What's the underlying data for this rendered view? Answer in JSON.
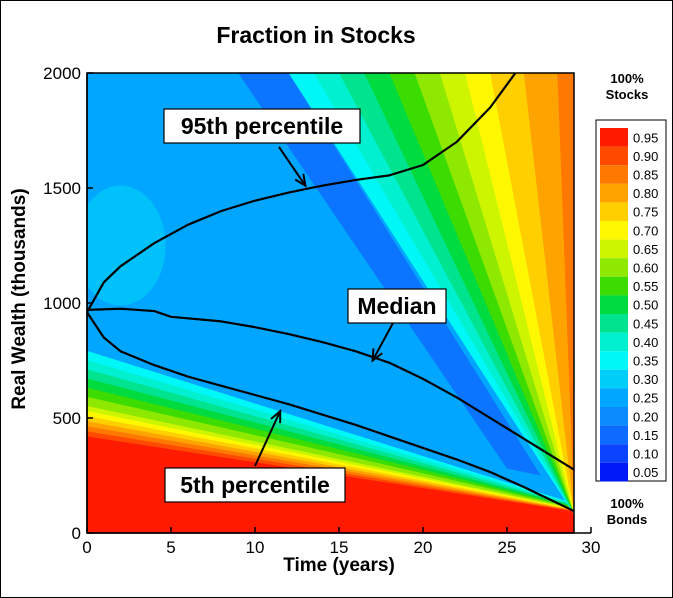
{
  "chart_data": {
    "type": "heatmap",
    "title": "Fraction in Stocks",
    "xlabel": "Time (years)",
    "ylabel": "Real Wealth (thousands)",
    "xlim": [
      0,
      30
    ],
    "ylim": [
      0,
      2000
    ],
    "x_ticks": [
      {
        "value": 0,
        "label": "0"
      },
      {
        "value": 5,
        "label": "5"
      },
      {
        "value": 10,
        "label": "10"
      },
      {
        "value": 15,
        "label": "15"
      },
      {
        "value": 20,
        "label": "20"
      },
      {
        "value": 25,
        "label": "25"
      },
      {
        "value": 30,
        "label": "30"
      }
    ],
    "y_ticks": [
      {
        "value": 0,
        "label": "0"
      },
      {
        "value": 500,
        "label": "500"
      },
      {
        "value": 1000,
        "label": "1000"
      },
      {
        "value": 1500,
        "label": "1500"
      },
      {
        "value": 2000,
        "label": "2000"
      }
    ],
    "colorbar": {
      "top_label": [
        "100%",
        "Stocks"
      ],
      "bottom_label": [
        "100%",
        "Bonds"
      ],
      "levels": [
        {
          "value": 0.95,
          "label": "0.95",
          "color": "#ff1a00"
        },
        {
          "value": 0.9,
          "label": "0.90",
          "color": "#ff4a00"
        },
        {
          "value": 0.85,
          "label": "0.85",
          "color": "#ff7800"
        },
        {
          "value": 0.8,
          "label": "0.80",
          "color": "#ffa300"
        },
        {
          "value": 0.75,
          "label": "0.75",
          "color": "#ffcf00"
        },
        {
          "value": 0.7,
          "label": "0.70",
          "color": "#fff800"
        },
        {
          "value": 0.65,
          "label": "0.65",
          "color": "#cdf500"
        },
        {
          "value": 0.6,
          "label": "0.60",
          "color": "#8fe800"
        },
        {
          "value": 0.55,
          "label": "0.55",
          "color": "#3ddc00"
        },
        {
          "value": 0.5,
          "label": "0.50",
          "color": "#00db40"
        },
        {
          "value": 0.45,
          "label": "0.45",
          "color": "#00e490"
        },
        {
          "value": 0.4,
          "label": "0.40",
          "color": "#00f0d0"
        },
        {
          "value": 0.35,
          "label": "0.35",
          "color": "#00f7f7"
        },
        {
          "value": 0.3,
          "label": "0.30",
          "color": "#00cdf8"
        },
        {
          "value": 0.25,
          "label": "0.25",
          "color": "#00a6ff"
        },
        {
          "value": 0.2,
          "label": "0.20",
          "color": "#0a8cff"
        },
        {
          "value": 0.15,
          "label": "0.15",
          "color": "#0d6cff"
        },
        {
          "value": 0.1,
          "label": "0.10",
          "color": "#0a44ff"
        },
        {
          "value": 0.05,
          "label": "0.05",
          "color": "#0018f8"
        }
      ]
    },
    "series": [
      {
        "name": "95th percentile",
        "x": [
          0,
          1,
          2,
          4,
          6,
          8,
          10,
          12,
          14,
          16,
          18,
          20,
          22,
          24,
          25.5
        ],
        "y": [
          960,
          1090,
          1160,
          1260,
          1340,
          1400,
          1445,
          1480,
          1510,
          1535,
          1555,
          1600,
          1700,
          1850,
          2000
        ]
      },
      {
        "name": "Median",
        "x": [
          0,
          2,
          4,
          5,
          8,
          10,
          12,
          14,
          16,
          18,
          20,
          22,
          24,
          26,
          28,
          29
        ],
        "y": [
          970,
          975,
          965,
          940,
          920,
          895,
          865,
          830,
          790,
          740,
          670,
          590,
          500,
          410,
          320,
          275
        ]
      },
      {
        "name": "5th percentile",
        "x": [
          0,
          1,
          2,
          4,
          6,
          8,
          10,
          12,
          14,
          16,
          18,
          20,
          22,
          24,
          26,
          28,
          29
        ],
        "y": [
          960,
          850,
          790,
          730,
          680,
          640,
          600,
          560,
          515,
          470,
          420,
          370,
          320,
          265,
          200,
          130,
          95
        ]
      }
    ],
    "annotations": [
      {
        "text": "95th percentile",
        "arrow_to": {
          "x": 13,
          "y": 1510
        }
      },
      {
        "text": "Median",
        "arrow_to": {
          "x": 17,
          "y": 750
        }
      },
      {
        "text": "5th percentile",
        "arrow_to": {
          "x": 11.5,
          "y": 530
        }
      }
    ]
  }
}
